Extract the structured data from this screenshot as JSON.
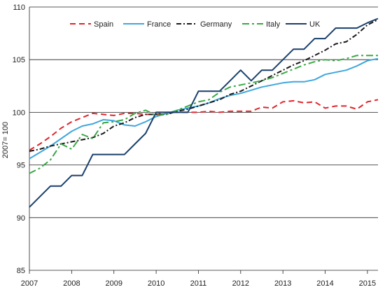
{
  "chart_data": {
    "type": "line",
    "title": "",
    "xlabel": "",
    "ylabel": "2007= 100",
    "ylim": [
      85,
      110
    ],
    "xlim": [
      2007,
      2015.25
    ],
    "y_ticks": [
      85,
      90,
      95,
      100,
      105,
      110
    ],
    "x_ticks": [
      2007,
      2008,
      2009,
      2010,
      2011,
      2012,
      2013,
      2014,
      2015
    ],
    "x_tick_labels": [
      "2007",
      "2008",
      "2009",
      "2010",
      "2011",
      "2012",
      "2013",
      "2014",
      "2015"
    ],
    "y_tick_labels": [
      "85",
      "90",
      "95",
      "100",
      "105",
      "110"
    ],
    "grid": "horizontal",
    "legend": "top",
    "series": [
      {
        "name": "Spain",
        "color": "#e0252c",
        "dash": "8,5",
        "x": [
          2007,
          2007.25,
          2007.5,
          2007.75,
          2008,
          2008.25,
          2008.5,
          2008.75,
          2009,
          2009.25,
          2009.5,
          2009.75,
          2010,
          2010.25,
          2010.5,
          2010.75,
          2011,
          2011.25,
          2011.5,
          2011.75,
          2012,
          2012.25,
          2012.5,
          2012.75,
          2013,
          2013.25,
          2013.5,
          2013.75,
          2014,
          2014.25,
          2014.5,
          2014.75,
          2015,
          2015.25
        ],
        "values": [
          96.4,
          97.0,
          97.7,
          98.5,
          99.1,
          99.5,
          99.9,
          99.8,
          99.7,
          99.9,
          99.9,
          99.8,
          99.8,
          100.0,
          100.0,
          100.0,
          100.0,
          100.1,
          100.0,
          100.1,
          100.1,
          100.1,
          100.5,
          100.4,
          101.0,
          101.1,
          100.9,
          101.0,
          100.4,
          100.6,
          100.6,
          100.3,
          101.0,
          101.2
        ]
      },
      {
        "name": "France",
        "color": "#3fa7dd",
        "dash": "",
        "x": [
          2007,
          2007.25,
          2007.5,
          2007.75,
          2008,
          2008.25,
          2008.5,
          2008.75,
          2009,
          2009.25,
          2009.5,
          2009.75,
          2010,
          2010.25,
          2010.5,
          2010.75,
          2011,
          2011.25,
          2011.5,
          2011.75,
          2012,
          2012.25,
          2012.5,
          2012.75,
          2013,
          2013.25,
          2013.5,
          2013.75,
          2014,
          2014.25,
          2014.5,
          2014.75,
          2015,
          2015.25
        ],
        "values": [
          95.6,
          96.2,
          96.8,
          97.5,
          98.2,
          98.7,
          98.9,
          99.3,
          99.2,
          98.8,
          98.7,
          99.1,
          99.6,
          99.9,
          100.2,
          100.4,
          100.6,
          100.9,
          101.3,
          101.6,
          101.8,
          102.1,
          102.4,
          102.6,
          102.8,
          102.9,
          102.9,
          103.1,
          103.6,
          103.8,
          104.0,
          104.4,
          104.9,
          105.1
        ]
      },
      {
        "name": "Germany",
        "color": "#1a1a1a",
        "dash": "7,3,2,3",
        "x": [
          2007,
          2007.25,
          2007.5,
          2007.75,
          2008,
          2008.25,
          2008.5,
          2008.75,
          2009,
          2009.25,
          2009.5,
          2009.75,
          2010,
          2010.25,
          2010.5,
          2010.75,
          2011,
          2011.25,
          2011.5,
          2011.75,
          2012,
          2012.25,
          2012.5,
          2012.75,
          2013,
          2013.25,
          2013.5,
          2013.75,
          2014,
          2014.25,
          2014.5,
          2014.75,
          2015,
          2015.25
        ],
        "values": [
          96.3,
          96.5,
          96.8,
          97.0,
          97.2,
          97.4,
          97.6,
          98.0,
          98.7,
          99.0,
          99.5,
          99.8,
          99.8,
          99.8,
          100.1,
          100.3,
          100.6,
          100.9,
          101.2,
          101.7,
          102.0,
          102.5,
          103.0,
          103.5,
          104.0,
          104.5,
          104.9,
          105.4,
          105.9,
          106.5,
          106.7,
          107.4,
          108.3,
          108.8
        ]
      },
      {
        "name": "Italy",
        "color": "#3aa845",
        "dash": "10,4,3,4",
        "x": [
          2007,
          2007.25,
          2007.5,
          2007.75,
          2008,
          2008.25,
          2008.5,
          2008.75,
          2009,
          2009.25,
          2009.5,
          2009.75,
          2010,
          2010.25,
          2010.5,
          2010.75,
          2011,
          2011.25,
          2011.5,
          2011.75,
          2012,
          2012.25,
          2012.5,
          2012.75,
          2013,
          2013.25,
          2013.5,
          2013.75,
          2014,
          2014.25,
          2014.5,
          2014.75,
          2015,
          2015.25
        ],
        "values": [
          94.2,
          94.7,
          95.5,
          97.0,
          96.5,
          97.9,
          97.5,
          99.0,
          99.1,
          99.3,
          99.9,
          100.2,
          99.7,
          99.8,
          100.2,
          100.6,
          101.0,
          101.2,
          101.9,
          102.4,
          102.6,
          102.8,
          103.0,
          103.3,
          103.7,
          104.1,
          104.5,
          104.8,
          105.0,
          104.9,
          105.1,
          105.4,
          105.4,
          105.4
        ]
      },
      {
        "name": "UK",
        "color": "#1a3f6b",
        "dash": "",
        "x": [
          2007,
          2007.25,
          2007.5,
          2007.75,
          2008,
          2008.25,
          2008.5,
          2008.75,
          2009,
          2009.25,
          2009.5,
          2009.75,
          2010,
          2010.25,
          2010.5,
          2010.75,
          2011,
          2011.25,
          2011.5,
          2011.75,
          2012,
          2012.25,
          2012.5,
          2012.75,
          2013,
          2013.25,
          2013.5,
          2013.75,
          2014,
          2014.25,
          2014.5,
          2014.75,
          2015,
          2015.25
        ],
        "values": [
          91.0,
          92.0,
          93.0,
          93.0,
          94.0,
          94.0,
          96.0,
          96.0,
          96.0,
          96.0,
          97.0,
          98.0,
          100.0,
          100.0,
          100.0,
          100.0,
          102.0,
          102.0,
          102.0,
          103.0,
          104.0,
          103.0,
          104.0,
          104.0,
          105.0,
          106.0,
          106.0,
          107.0,
          107.0,
          108.0,
          108.0,
          108.0,
          108.5,
          108.9
        ]
      }
    ]
  }
}
